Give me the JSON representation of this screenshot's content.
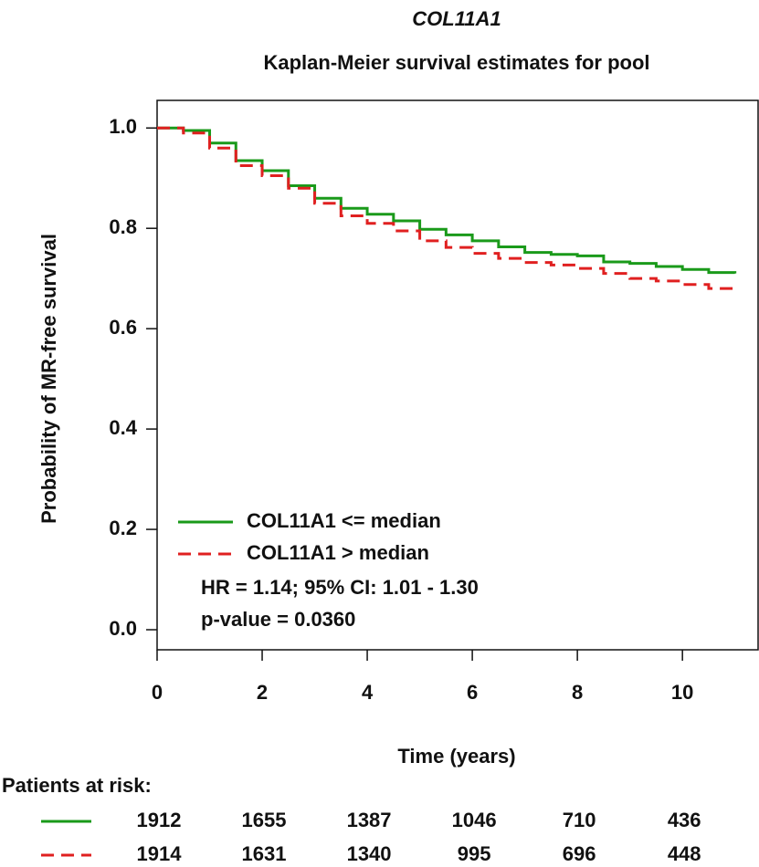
{
  "chart_data": {
    "type": "step",
    "title": "COL11A1",
    "subtitle": "Kaplan-Meier survival estimates for pool",
    "xlabel": "Time (years)",
    "ylabel": "Probability of MR-free survival",
    "x": [
      0,
      0.5,
      1,
      1.5,
      2,
      2.5,
      3,
      3.5,
      4,
      4.5,
      5,
      5.5,
      6,
      6.5,
      7,
      7.5,
      8,
      8.5,
      9,
      9.5,
      10,
      10.5,
      11
    ],
    "series": [
      {
        "name": "COL11A1 <= median",
        "color": "#1a9a1a",
        "dash": false,
        "values": [
          1,
          0.995,
          0.97,
          0.935,
          0.915,
          0.885,
          0.86,
          0.84,
          0.828,
          0.815,
          0.798,
          0.787,
          0.775,
          0.763,
          0.752,
          0.748,
          0.745,
          0.733,
          0.73,
          0.724,
          0.718,
          0.712,
          0.71
        ],
        "at_risk": [
          1912,
          1655,
          1387,
          1046,
          710,
          436
        ]
      },
      {
        "name": "COL11A1 > median",
        "color": "#e02020",
        "dash": true,
        "values": [
          1,
          0.99,
          0.96,
          0.925,
          0.905,
          0.88,
          0.85,
          0.825,
          0.81,
          0.795,
          0.775,
          0.762,
          0.75,
          0.74,
          0.732,
          0.727,
          0.72,
          0.71,
          0.7,
          0.695,
          0.688,
          0.68,
          0.675
        ],
        "at_risk": [
          1914,
          1631,
          1340,
          995,
          696,
          448
        ]
      }
    ],
    "at_risk_label": "Patients at risk:",
    "annotations": [
      "HR = 1.14; 95% CI: 1.01 - 1.30",
      "p-value = 0.0360"
    ],
    "xlim": [
      0,
      11.44
    ],
    "ylim": [
      -0.04,
      1.055
    ],
    "xticks": [
      0,
      2,
      4,
      6,
      8,
      10
    ],
    "yticks": [
      {
        "value": 0,
        "label": "0.0"
      },
      {
        "value": 0.2,
        "label": "0.2"
      },
      {
        "value": 0.4,
        "label": "0.4"
      },
      {
        "value": 0.6,
        "label": "0.6"
      },
      {
        "value": 0.8,
        "label": "0.8"
      },
      {
        "value": 1,
        "label": "1.0"
      }
    ],
    "legend": "bottom-left"
  }
}
